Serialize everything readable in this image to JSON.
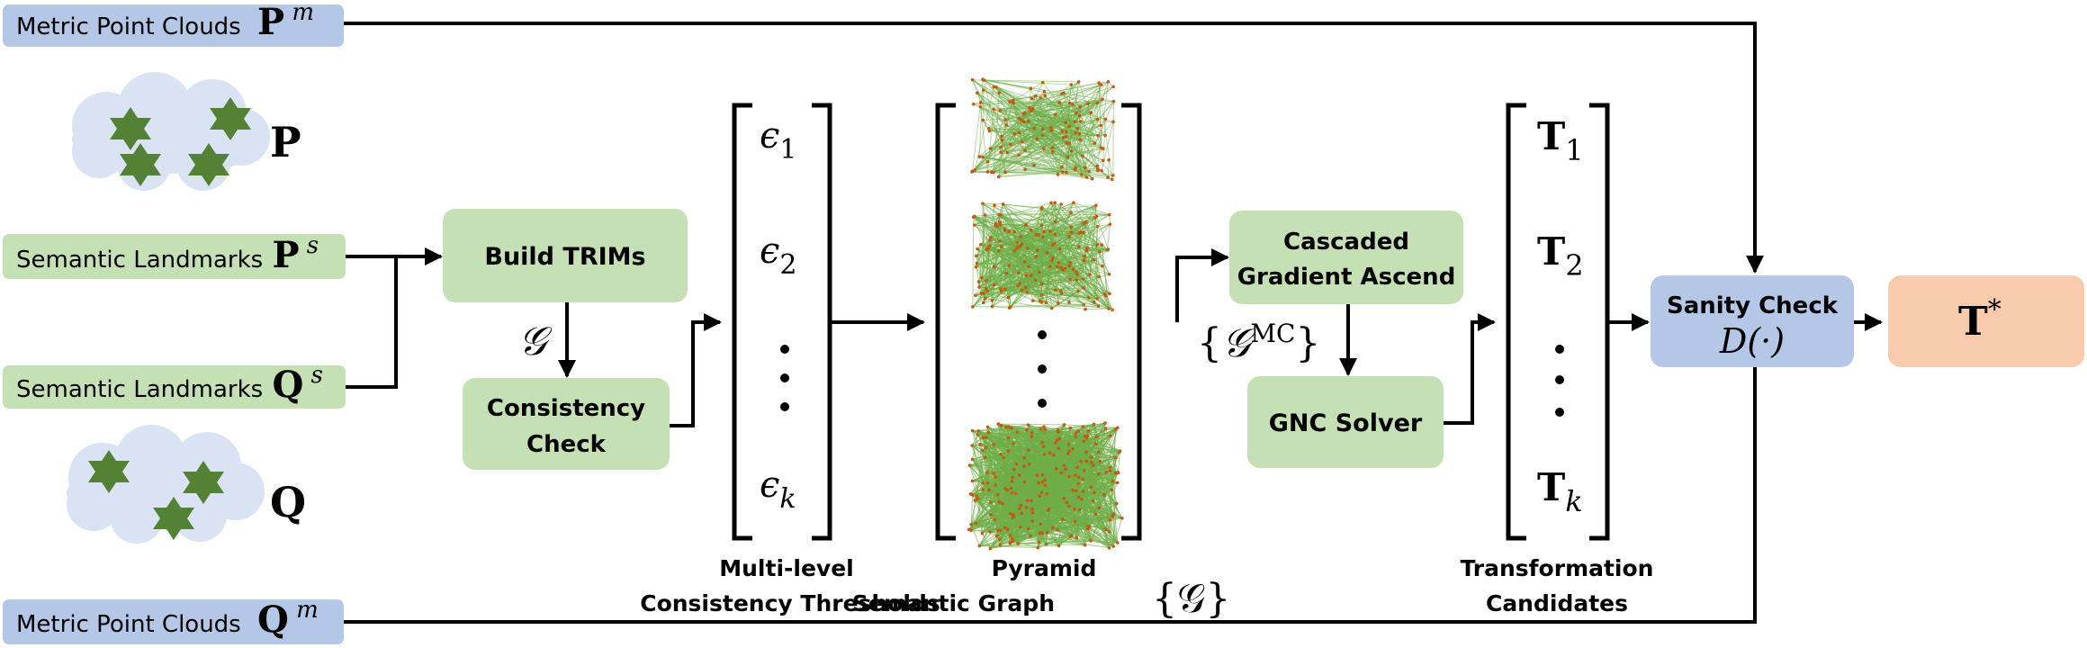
{
  "inputs": {
    "metric_p": {
      "label": "Metric Point Clouds",
      "sym": "P",
      "sup": "m"
    },
    "metric_q": {
      "label": "Metric Point Clouds",
      "sym": "Q",
      "sup": "m"
    },
    "sem_p": {
      "label": "Semantic Landmarks",
      "sym": "P",
      "sup": "s"
    },
    "sem_q": {
      "label": "Semantic Landmarks",
      "sym": "Q",
      "sup": "s"
    },
    "cloud_p": {
      "sym": "P"
    },
    "cloud_q": {
      "sym": "Q"
    }
  },
  "blocks": {
    "build_trims": "Build TRIMs",
    "consistency_check": [
      "Consistency",
      "Check"
    ],
    "cascaded": [
      "Cascaded",
      "Gradient Ascend"
    ],
    "gnc": "GNC Solver",
    "sanity": {
      "label": "Sanity Check",
      "formula": "D(·)"
    },
    "output": {
      "sym": "T",
      "sup": "*"
    }
  },
  "symbols": {
    "graph": "𝒢",
    "graph_mc": {
      "open": "{",
      "sym": "𝒢",
      "sup": "MC",
      "close": "}"
    }
  },
  "thresholds": {
    "items": [
      {
        "sym": "ϵ",
        "sub": "1"
      },
      {
        "sym": "ϵ",
        "sub": "2"
      },
      {
        "sym": "ϵ",
        "sub": "k"
      }
    ],
    "ellipsis": "·",
    "caption": [
      "Multi-level",
      "Consistency Thresholds"
    ]
  },
  "pyramid": {
    "caption_line1": "Pyramid",
    "caption_line2": "Semantic Graph",
    "caption_sym": "{𝒢}",
    "ellipsis": "·"
  },
  "candidates": {
    "items": [
      {
        "sym": "T",
        "sub": "1"
      },
      {
        "sym": "T",
        "sub": "2"
      },
      {
        "sym": "T",
        "sub": "k"
      }
    ],
    "ellipsis": "·",
    "caption": [
      "Transformation",
      "Candidates"
    ]
  },
  "colors": {
    "blue_box": "#b4c7e7",
    "green_box": "#c5e0b4",
    "orange_box": "#f8cbad",
    "cloud": "#dae3f3",
    "star": "#548235",
    "graph_edge": "#70ad47",
    "graph_node": "#c55a11"
  }
}
